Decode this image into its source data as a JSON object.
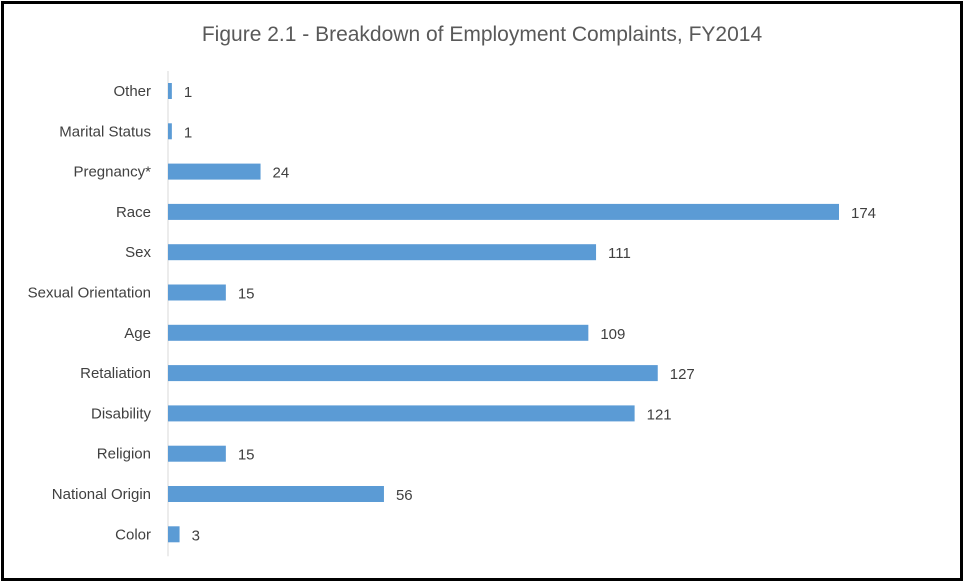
{
  "chart_data": {
    "type": "bar",
    "orientation": "horizontal",
    "title": "Figure 2.1 - Breakdown of Employment Complaints, FY2014",
    "xlabel": "",
    "ylabel": "",
    "categories": [
      "Other",
      "Marital Status",
      "Pregnancy*",
      "Race",
      "Sex",
      "Sexual Orientation",
      "Age",
      "Retaliation",
      "Disability",
      "Religion",
      "National Origin",
      "Color"
    ],
    "values": [
      1,
      1,
      24,
      174,
      111,
      15,
      109,
      127,
      121,
      15,
      56,
      3
    ],
    "xlim": [
      0,
      180
    ],
    "grid": false,
    "legend": "none",
    "bar_color": "#5B9BD5",
    "text_color": "#404040",
    "axis_color": "#D9D9D9"
  }
}
